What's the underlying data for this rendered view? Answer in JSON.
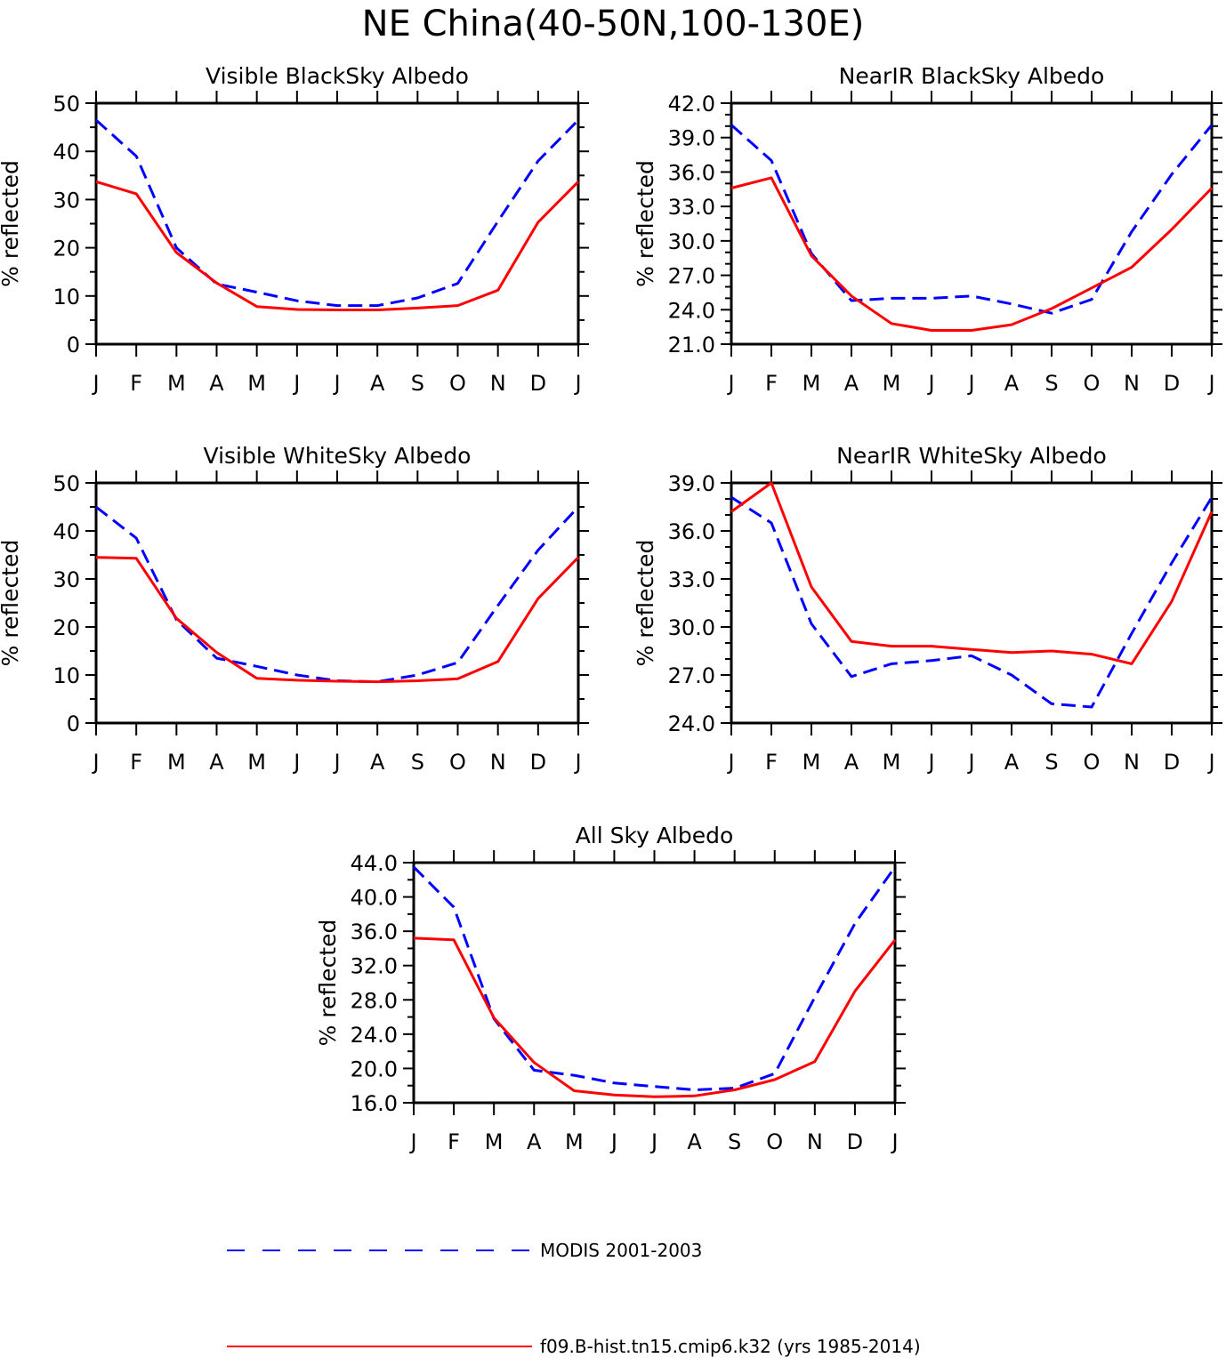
{
  "figure": {
    "title": "NE China(40-50N,100-130E)"
  },
  "legend": {
    "items": [
      {
        "label": "MODIS 2001-2003",
        "color": "#0000ff",
        "dash": "dashed"
      },
      {
        "label": "f09.B-hist.tn15.cmip6.k32 (yrs 1985-2014)",
        "color": "#ff0000",
        "dash": "solid"
      }
    ]
  },
  "chart_data": [
    {
      "type": "line",
      "title": "Visible BlackSky Albedo",
      "ylabel": "% reflected",
      "xlabel": "",
      "categories": [
        "J",
        "F",
        "M",
        "A",
        "M",
        "J",
        "J",
        "A",
        "S",
        "O",
        "N",
        "D",
        "J"
      ],
      "ylim": [
        0,
        50
      ],
      "yticks": [
        "0",
        "10",
        "20",
        "30",
        "40",
        "50"
      ],
      "grid": false,
      "series": [
        {
          "name": "MODIS 2001-2003",
          "color": "#0000ff",
          "dash": "dashed",
          "values": [
            46.5,
            39,
            20,
            12.5,
            10.8,
            9,
            8,
            8,
            9.6,
            12.6,
            25.5,
            38,
            46.5
          ]
        },
        {
          "name": "f09.B-hist.tn15.cmip6.k32 (yrs 1985-2014)",
          "color": "#ff0000",
          "dash": "solid",
          "values": [
            33.7,
            31.2,
            19,
            12.7,
            7.8,
            7.2,
            7.1,
            7.1,
            7.5,
            8,
            11.2,
            25.3,
            33.7
          ]
        }
      ]
    },
    {
      "type": "line",
      "title": "NearIR BlackSky Albedo",
      "ylabel": "% reflected",
      "xlabel": "",
      "categories": [
        "J",
        "F",
        "M",
        "A",
        "M",
        "J",
        "J",
        "A",
        "S",
        "O",
        "N",
        "D",
        "J"
      ],
      "ylim": [
        21,
        42
      ],
      "yticks": [
        "21.0",
        "24.0",
        "27.0",
        "30.0",
        "33.0",
        "36.0",
        "39.0",
        "42.0"
      ],
      "grid": false,
      "series": [
        {
          "name": "MODIS 2001-2003",
          "color": "#0000ff",
          "dash": "dashed",
          "values": [
            40.1,
            37,
            28.9,
            24.8,
            25,
            25,
            25.2,
            24.5,
            23.7,
            24.9,
            30.8,
            35.8,
            40.1
          ]
        },
        {
          "name": "f09.B-hist.tn15.cmip6.k32 (yrs 1985-2014)",
          "color": "#ff0000",
          "dash": "solid",
          "values": [
            34.6,
            35.5,
            28.7,
            25.2,
            22.8,
            22.2,
            22.2,
            22.7,
            24.1,
            25.9,
            27.7,
            31,
            34.6
          ]
        }
      ]
    },
    {
      "type": "line",
      "title": "Visible WhiteSky Albedo",
      "ylabel": "% reflected",
      "xlabel": "",
      "categories": [
        "J",
        "F",
        "M",
        "A",
        "M",
        "J",
        "J",
        "A",
        "S",
        "O",
        "N",
        "D",
        "J"
      ],
      "ylim": [
        0,
        50
      ],
      "yticks": [
        "0",
        "10",
        "20",
        "30",
        "40",
        "50"
      ],
      "grid": false,
      "series": [
        {
          "name": "MODIS 2001-2003",
          "color": "#0000ff",
          "dash": "dashed",
          "values": [
            45,
            38.5,
            21.5,
            13.5,
            11.8,
            10,
            8.8,
            8.6,
            10,
            12.6,
            24.5,
            36,
            45
          ]
        },
        {
          "name": "f09.B-hist.tn15.cmip6.k32 (yrs 1985-2014)",
          "color": "#ff0000",
          "dash": "solid",
          "values": [
            34.5,
            34.3,
            21.8,
            14.7,
            9.3,
            8.9,
            8.7,
            8.6,
            8.8,
            9.2,
            12.8,
            25.9,
            34.5
          ]
        }
      ]
    },
    {
      "type": "line",
      "title": "NearIR WhiteSky Albedo",
      "ylabel": "% reflected",
      "xlabel": "",
      "categories": [
        "J",
        "F",
        "M",
        "A",
        "M",
        "J",
        "J",
        "A",
        "S",
        "O",
        "N",
        "D",
        "J"
      ],
      "ylim": [
        24,
        39
      ],
      "yticks": [
        "24.0",
        "27.0",
        "30.0",
        "33.0",
        "36.0",
        "39.0"
      ],
      "grid": false,
      "series": [
        {
          "name": "MODIS 2001-2003",
          "color": "#0000ff",
          "dash": "dashed",
          "values": [
            38.1,
            36.5,
            30.2,
            26.9,
            27.7,
            27.9,
            28.2,
            27,
            25.2,
            25,
            29.6,
            34,
            38.1
          ]
        },
        {
          "name": "f09.B-hist.tn15.cmip6.k32 (yrs 1985-2014)",
          "color": "#ff0000",
          "dash": "solid",
          "values": [
            37.2,
            39,
            32.5,
            29.1,
            28.8,
            28.8,
            28.6,
            28.4,
            28.5,
            28.3,
            27.7,
            31.6,
            37.2
          ]
        }
      ]
    },
    {
      "type": "line",
      "title": "All Sky Albedo",
      "ylabel": "% reflected",
      "xlabel": "",
      "categories": [
        "J",
        "F",
        "M",
        "A",
        "M",
        "J",
        "J",
        "A",
        "S",
        "O",
        "N",
        "D",
        "J"
      ],
      "ylim": [
        16,
        44
      ],
      "yticks": [
        "16.0",
        "20.0",
        "24.0",
        "28.0",
        "32.0",
        "36.0",
        "40.0",
        "44.0"
      ],
      "grid": false,
      "series": [
        {
          "name": "MODIS 2001-2003",
          "color": "#0000ff",
          "dash": "dashed",
          "values": [
            43.5,
            38.8,
            25.8,
            19.8,
            19.2,
            18.3,
            17.9,
            17.5,
            17.7,
            19.4,
            28.3,
            36.9,
            43.5
          ]
        },
        {
          "name": "f09.B-hist.tn15.cmip6.k32 (yrs 1985-2014)",
          "color": "#ff0000",
          "dash": "solid",
          "values": [
            35.2,
            35,
            25.9,
            20.7,
            17.4,
            16.9,
            16.7,
            16.8,
            17.5,
            18.7,
            20.8,
            29,
            35
          ]
        }
      ]
    }
  ]
}
